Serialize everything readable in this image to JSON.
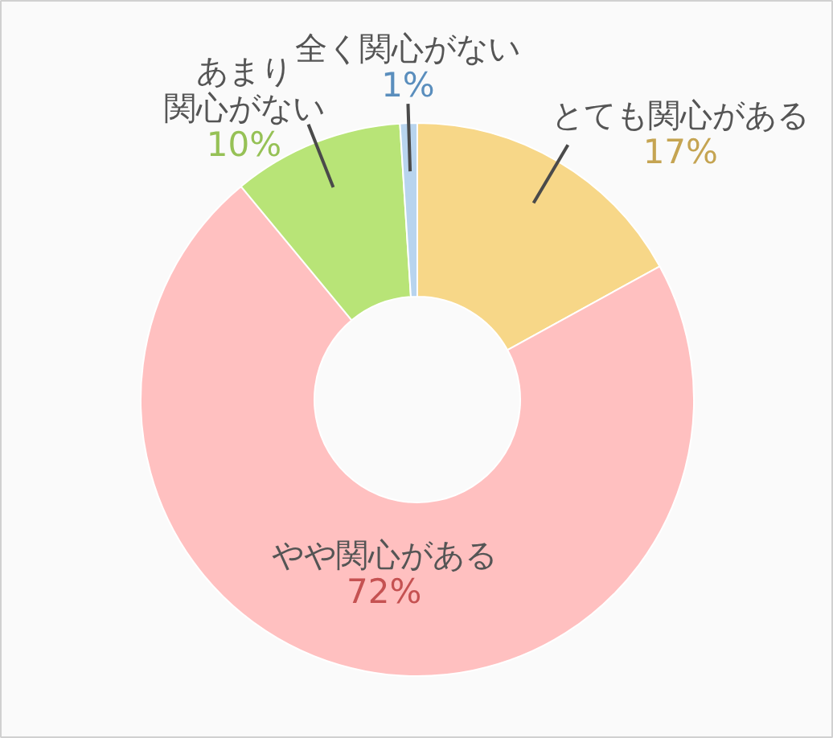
{
  "chart_data": {
    "type": "donut",
    "categories": [
      "とても関心がある",
      "やや関心がある",
      "あまり関心がない",
      "全く関心がない"
    ],
    "values": [
      17,
      72,
      10,
      1
    ],
    "colors": [
      "#f7d788",
      "#ffc0c0",
      "#b8e477",
      "#b8d4ee"
    ],
    "value_labels": [
      "17%",
      "72%",
      "10%",
      "1%"
    ]
  }
}
